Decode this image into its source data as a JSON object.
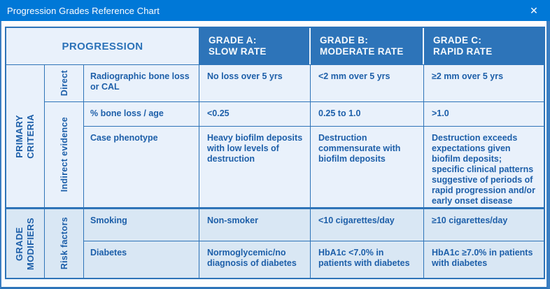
{
  "window": {
    "title": "Progression Grades Reference Chart",
    "close_icon": "✕"
  },
  "colors": {
    "titlebar": "#0078d7",
    "grade_header_bg": "#2d74b9",
    "upper_cell_bg": "#e9f1fb",
    "lower_cell_bg": "#d9e7f4",
    "grid_border": "#2e74b8",
    "text_blue": "#1d5fa9",
    "frame_blue": "#3b7ec2"
  },
  "table": {
    "progression": "PROGRESSION",
    "grades": [
      {
        "line1": "GRADE A:",
        "line2": "SLOW RATE"
      },
      {
        "line1": "GRADE B:",
        "line2": "MODERATE RATE"
      },
      {
        "line1": "GRADE C:",
        "line2": "RAPID RATE"
      }
    ],
    "sections": [
      {
        "label_line1": "PRIMARY",
        "label_line2": "CRITERIA",
        "subsections": [
          {
            "label": "Direct",
            "rows": [
              {
                "criterion": "Radiographic bone loss or CAL",
                "a": "No loss over 5 yrs",
                "b": "<2 mm over 5 yrs",
                "c": "≥2 mm over 5 yrs"
              }
            ]
          },
          {
            "label": "Indirect evidence",
            "rows": [
              {
                "criterion": "% bone loss / age",
                "a": "<0.25",
                "b": "0.25 to 1.0",
                "c": ">1.0"
              },
              {
                "criterion": "Case phenotype",
                "a": "Heavy biofilm deposits with low levels of destruction",
                "b": "Destruction commensurate with biofilm deposits",
                "c": "Destruction exceeds expectations given biofilm deposits; specific clinical patterns suggestive of periods of rapid progression and/or early onset disease"
              }
            ]
          }
        ]
      },
      {
        "label_line1": "GRADE",
        "label_line2": "MODIFIERS",
        "subsections": [
          {
            "label": "Risk factors",
            "rows": [
              {
                "criterion": "Smoking",
                "a": "Non-smoker",
                "b": "<10 cigarettes/day",
                "c": "≥10 cigarettes/day"
              },
              {
                "criterion": "Diabetes",
                "a": "Normoglycemic/no diagnosis of diabetes",
                "b": "HbA1c <7.0% in patients with diabetes",
                "c": "HbA1c ≥7.0% in patients with diabetes"
              }
            ]
          }
        ]
      }
    ]
  }
}
